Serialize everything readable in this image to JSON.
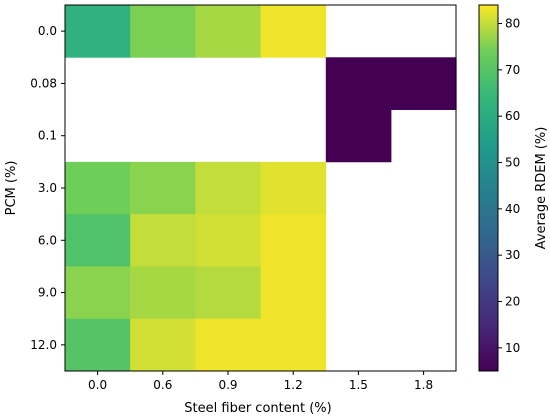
{
  "chart_data": {
    "type": "heatmap",
    "xlabel": "Steel fiber content (%)",
    "ylabel": "PCM (%)",
    "x_categories": [
      "0.0",
      "0.6",
      "0.9",
      "1.2",
      "1.5",
      "1.8"
    ],
    "y_categories": [
      "0.0",
      "0.08",
      "0.1",
      "3.0",
      "6.0",
      "9.0",
      "12.0"
    ],
    "values": [
      [
        62,
        75,
        78,
        83,
        null,
        null
      ],
      [
        null,
        null,
        null,
        null,
        5,
        5
      ],
      [
        null,
        null,
        null,
        null,
        5,
        null
      ],
      [
        74,
        76,
        80,
        82,
        null,
        null
      ],
      [
        69,
        80,
        81,
        83,
        null,
        null
      ],
      [
        76,
        78,
        79,
        83,
        null,
        null
      ],
      [
        70,
        81,
        83,
        83,
        null,
        null
      ]
    ],
    "colorbar": {
      "label": "Average RDEM (%)",
      "min": 5,
      "max": 84,
      "ticks": [
        10,
        20,
        30,
        40,
        50,
        60,
        70,
        80
      ],
      "colormap": "viridis"
    }
  }
}
